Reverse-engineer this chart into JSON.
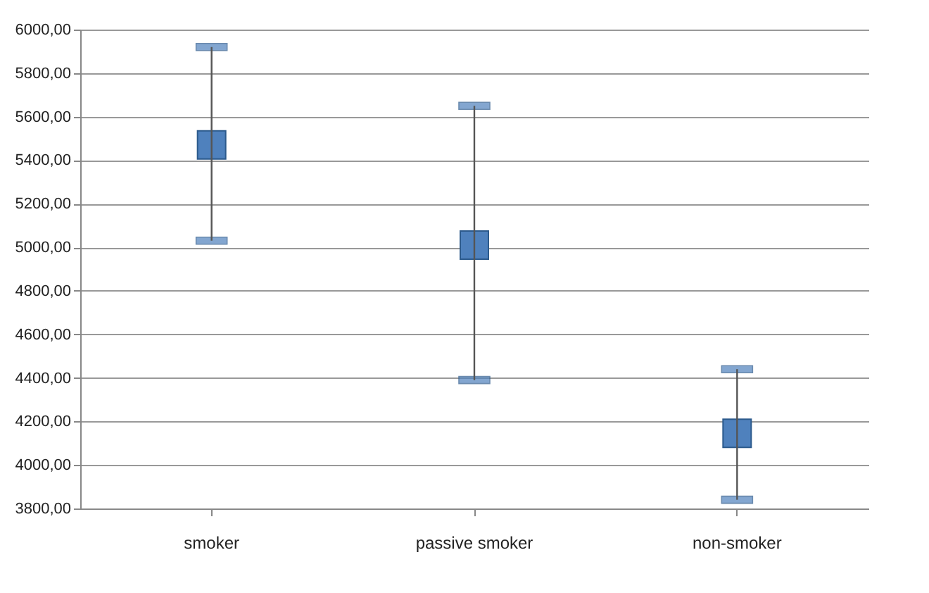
{
  "chart_data": {
    "type": "scatter",
    "categories": [
      "smoker",
      "passive smoker",
      "non-smoker"
    ],
    "series": [
      {
        "color": "#4f81bd",
        "values": [
          5470,
          5010,
          4145
        ],
        "errors": [
          [
            5030,
            5920
          ],
          [
            4390,
            5650
          ],
          [
            3840,
            4440
          ]
        ]
      }
    ],
    "ylim": [
      3800,
      6000
    ],
    "yticks": [
      {
        "value": 3800,
        "label": "3800,00"
      },
      {
        "value": 4000,
        "label": "4000,00"
      },
      {
        "value": 4200,
        "label": "4200,00"
      },
      {
        "value": 4400,
        "label": "4400,00"
      },
      {
        "value": 4600,
        "label": "4600,00"
      },
      {
        "value": 4800,
        "label": "4800,00"
      },
      {
        "value": 5000,
        "label": "5000,00"
      },
      {
        "value": 5200,
        "label": "5200,00"
      },
      {
        "value": 5400,
        "label": "5400,00"
      },
      {
        "value": 5600,
        "label": "5600,00"
      },
      {
        "value": 5800,
        "label": "5800,00"
      },
      {
        "value": 6000,
        "label": "6000,00"
      }
    ],
    "grid": "y",
    "marker": "square"
  }
}
